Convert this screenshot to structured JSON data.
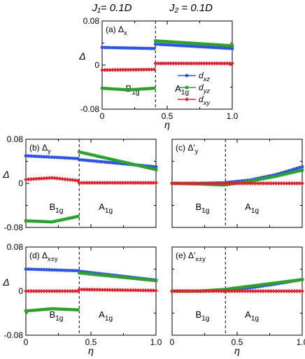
{
  "figure_title": {
    "j1": "J₁= 0.1D",
    "j2": "J₂ = 0.1D"
  },
  "legend": [
    {
      "label": "d_xz",
      "sub": "xz",
      "color": "#2f55e0",
      "marker": "circle"
    },
    {
      "label": "d_yz",
      "sub": "yz",
      "color": "#2ea02e",
      "marker": "square"
    },
    {
      "label": "d_xy",
      "sub": "xy",
      "color": "#e0202a",
      "marker": "diamond"
    }
  ],
  "chart_data": [
    {
      "type": "line",
      "panel": "a",
      "label": "(a) Δ_x",
      "label_main": "(a) Δ",
      "label_sub": "x",
      "xlabel": "η",
      "ylabel": "Δ",
      "xlim": [
        0,
        1
      ],
      "ylim": [
        -0.08,
        0.08
      ],
      "yticks": [
        "0.08",
        "0",
        "-0.08"
      ],
      "xticks": [
        "0",
        "0.5",
        "1.0"
      ],
      "transition": 0.41,
      "phases": [
        {
          "name": "B",
          "sub": "1g",
          "x": 0.18
        },
        {
          "name": "A",
          "sub": "1g",
          "x": 0.56
        }
      ],
      "series": [
        {
          "name": "d_xz",
          "segments": [
            {
              "x": [
                0,
                0.4
              ],
              "y": [
                0.032,
                0.03
              ]
            },
            {
              "x": [
                0.41,
                1.0
              ],
              "y": [
                0.038,
                0.03
              ]
            }
          ]
        },
        {
          "name": "d_yz",
          "segments": [
            {
              "x": [
                0,
                0.2,
                0.4
              ],
              "y": [
                -0.042,
                -0.045,
                -0.042
              ]
            },
            {
              "x": [
                0.41,
                1.0
              ],
              "y": [
                0.044,
                0.035
              ]
            }
          ]
        },
        {
          "name": "d_xy",
          "segments": [
            {
              "x": [
                0,
                0.4
              ],
              "y": [
                -0.009,
                -0.008
              ]
            },
            {
              "x": [
                0.41,
                1.0
              ],
              "y": [
                0.003,
                0.003
              ]
            }
          ]
        }
      ]
    },
    {
      "type": "line",
      "panel": "b",
      "label": "(b) Δ_y",
      "label_main": "(b) Δ",
      "label_sub": "y",
      "xlim": [
        0,
        1
      ],
      "ylim": [
        -0.08,
        0.08
      ],
      "yticks": [
        "0.08",
        "0",
        "-0.08"
      ],
      "ylabel": "Δ",
      "transition": 0.41,
      "phases": [
        {
          "name": "B",
          "sub": "1g",
          "x": 0.18
        },
        {
          "name": "A",
          "sub": "1g",
          "x": 0.56
        }
      ],
      "series": [
        {
          "name": "d_xz",
          "segments": [
            {
              "x": [
                0,
                0.4
              ],
              "y": [
                0.05,
                0.045
              ]
            },
            {
              "x": [
                0.41,
                1.0
              ],
              "y": [
                0.043,
                0.03
              ]
            }
          ]
        },
        {
          "name": "d_yz",
          "segments": [
            {
              "x": [
                0,
                0.2,
                0.4
              ],
              "y": [
                -0.068,
                -0.07,
                -0.06
              ]
            },
            {
              "x": [
                0.41,
                1.0
              ],
              "y": [
                0.057,
                0.025
              ]
            }
          ]
        },
        {
          "name": "d_xy",
          "segments": [
            {
              "x": [
                0,
                0.2,
                0.4
              ],
              "y": [
                0.007,
                0.01,
                0.005
              ]
            },
            {
              "x": [
                0.41,
                1.0
              ],
              "y": [
                0.001,
                0.001
              ]
            }
          ]
        }
      ]
    },
    {
      "type": "line",
      "panel": "c",
      "label": "(c) Δ′_y",
      "label_main": "(c) Δ′",
      "label_sub": "y",
      "xlim": [
        0,
        1
      ],
      "ylim": [
        -0.08,
        0.08
      ],
      "transition": 0.41,
      "phases": [
        {
          "name": "B",
          "sub": "1g",
          "x": 0.18
        },
        {
          "name": "A",
          "sub": "1g",
          "x": 0.56
        }
      ],
      "series": [
        {
          "name": "d_xz",
          "segments": [
            {
              "x": [
                0,
                0.2,
                0.4,
                0.6,
                0.8,
                1.0
              ],
              "y": [
                0,
                0,
                0.001,
                0.006,
                0.016,
                0.03
              ]
            }
          ]
        },
        {
          "name": "d_yz",
          "segments": [
            {
              "x": [
                0,
                0.2,
                0.4,
                0.6,
                0.8,
                1.0
              ],
              "y": [
                0,
                -0.001,
                -0.003,
                0.004,
                0.013,
                0.024
              ]
            }
          ]
        },
        {
          "name": "d_xy",
          "segments": [
            {
              "x": [
                0,
                1.0
              ],
              "y": [
                0,
                0
              ]
            }
          ]
        }
      ]
    },
    {
      "type": "line",
      "panel": "d",
      "label": "(d) Δ_x±y",
      "label_main": "(d) Δ",
      "label_sub": "x±y",
      "xlim": [
        0,
        1
      ],
      "ylim": [
        -0.08,
        0.08
      ],
      "yticks": [
        "0.08",
        "0",
        "-0.08"
      ],
      "xticks": [
        "0",
        "0.5",
        "1.0"
      ],
      "xlabel": "η",
      "ylabel": "Δ",
      "transition": 0.41,
      "phases": [
        {
          "name": "B",
          "sub": "1g",
          "x": 0.18
        },
        {
          "name": "A",
          "sub": "1g",
          "x": 0.56
        }
      ],
      "series": [
        {
          "name": "d_xz",
          "segments": [
            {
              "x": [
                0,
                0.4
              ],
              "y": [
                0.04,
                0.037
              ]
            },
            {
              "x": [
                0.41,
                1.0
              ],
              "y": [
                0.036,
                0.02
              ]
            }
          ]
        },
        {
          "name": "d_yz",
          "segments": [
            {
              "x": [
                0,
                0.2,
                0.4
              ],
              "y": [
                -0.036,
                -0.032,
                -0.034
              ]
            },
            {
              "x": [
                0.41,
                1.0
              ],
              "y": [
                0.033,
                0.019
              ]
            }
          ]
        },
        {
          "name": "d_xy",
          "segments": [
            {
              "x": [
                0,
                0.4
              ],
              "y": [
                0.0,
                0.0
              ]
            },
            {
              "x": [
                0.41,
                1.0
              ],
              "y": [
                0.003,
                0.001
              ]
            }
          ]
        }
      ]
    },
    {
      "type": "line",
      "panel": "e",
      "label": "(e) Δ′_x±y",
      "label_main": "(e) Δ′",
      "label_sub": "x±y",
      "xlim": [
        0,
        1
      ],
      "ylim": [
        -0.08,
        0.08
      ],
      "xticks": [
        "0",
        "0.5",
        "1.0"
      ],
      "xlabel": "η",
      "transition": 0.41,
      "phases": [
        {
          "name": "B",
          "sub": "1g",
          "x": 0.18
        },
        {
          "name": "A",
          "sub": "1g",
          "x": 0.56
        }
      ],
      "series": [
        {
          "name": "d_xz",
          "segments": [
            {
              "x": [
                0,
                0.2,
                0.4,
                0.6,
                0.8,
                1.0
              ],
              "y": [
                0,
                0,
                0.001,
                0.006,
                0.013,
                0.021
              ]
            }
          ]
        },
        {
          "name": "d_yz",
          "segments": [
            {
              "x": [
                0,
                0.2,
                0.4,
                0.6,
                0.8,
                1.0
              ],
              "y": [
                0,
                0,
                0.003,
                0.009,
                0.015,
                0.021
              ]
            }
          ]
        },
        {
          "name": "d_xy",
          "segments": [
            {
              "x": [
                0,
                1.0
              ],
              "y": [
                0,
                0
              ]
            }
          ]
        }
      ]
    }
  ]
}
